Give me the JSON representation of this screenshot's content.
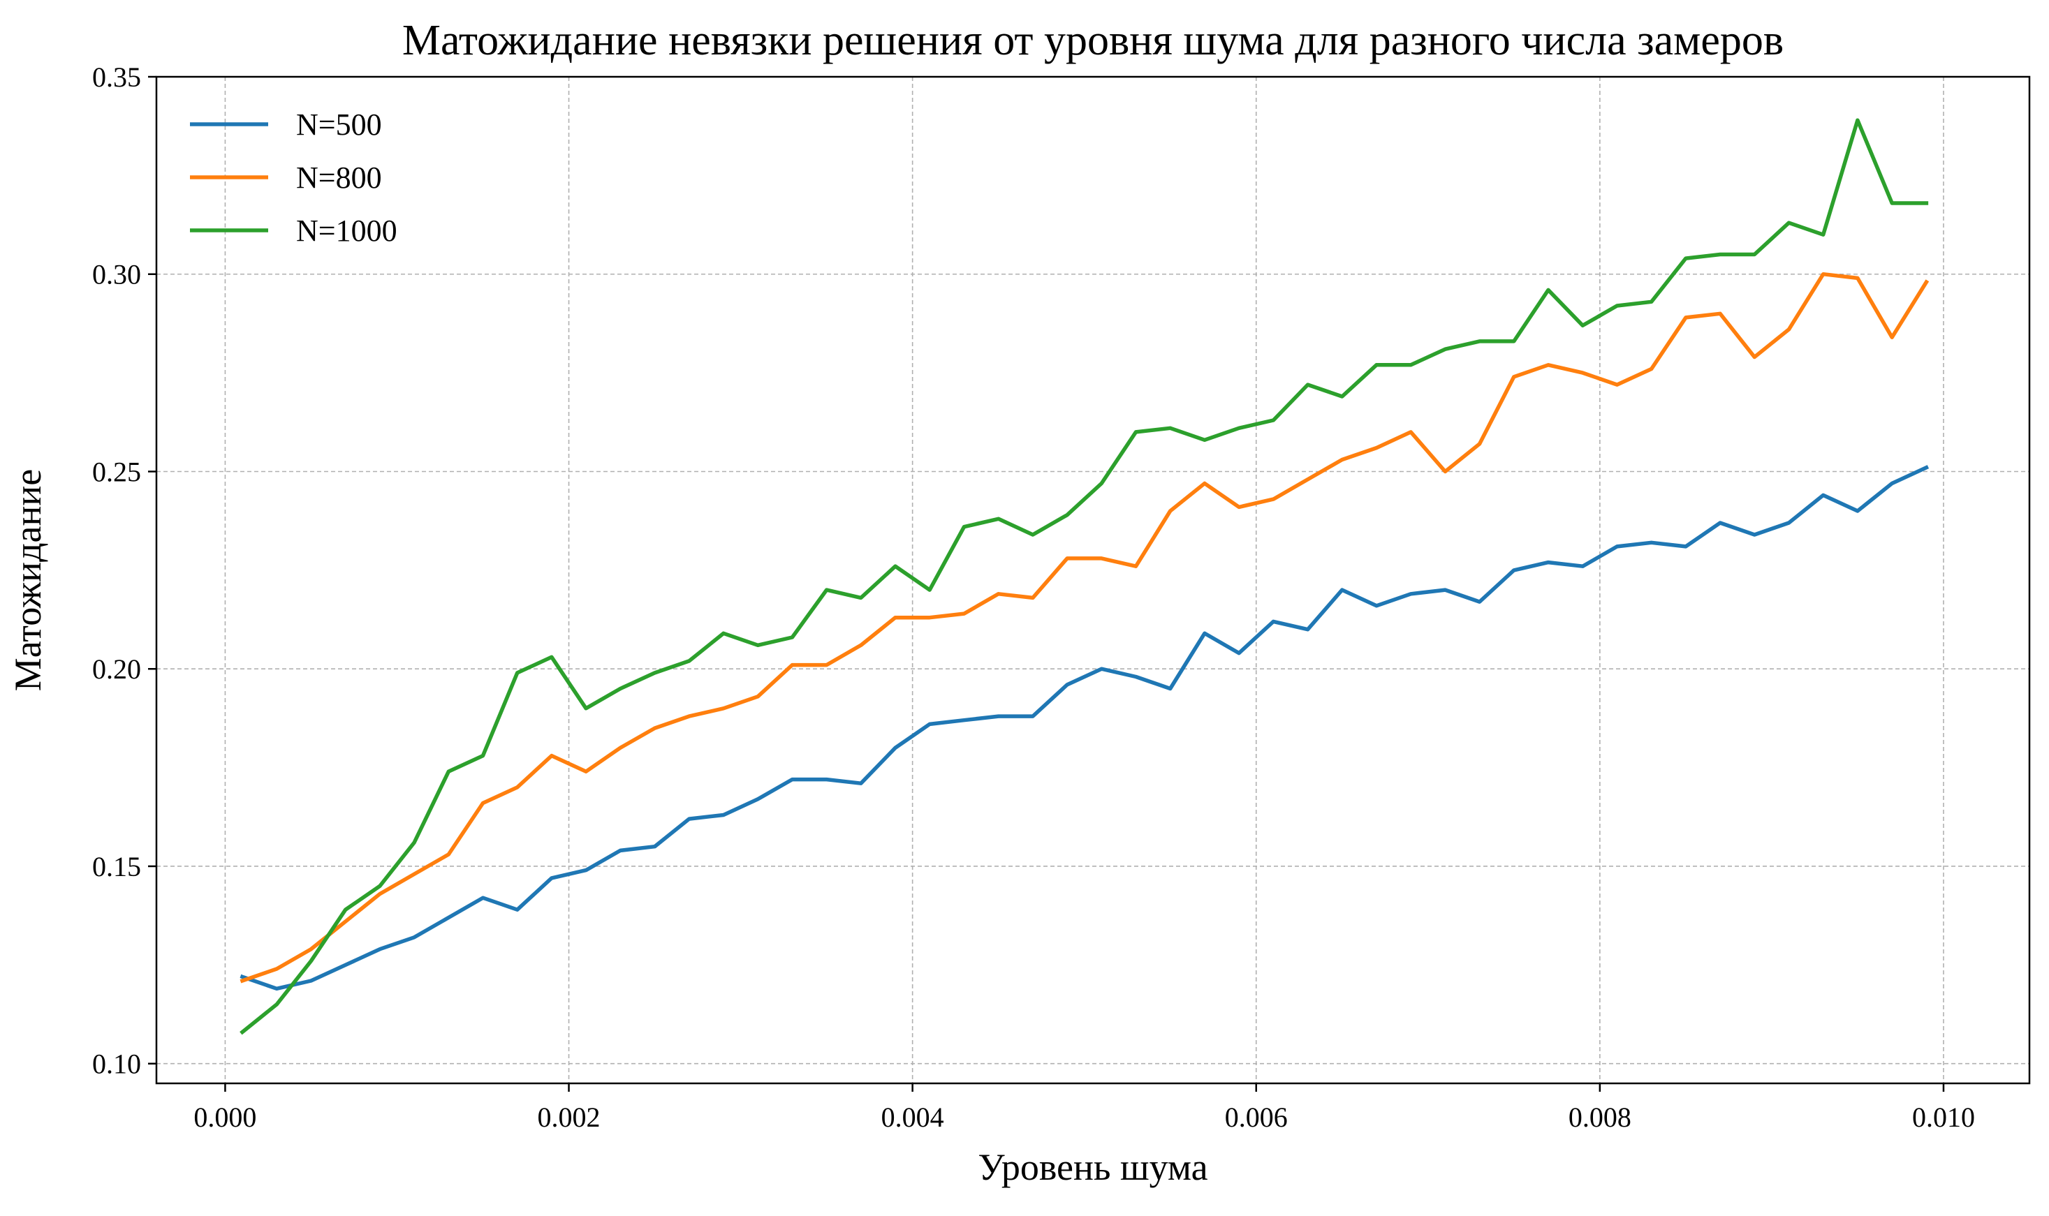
{
  "chart_data": {
    "type": "line",
    "title": "Матожидание невязки решения от уровня шума для разного числа замеров",
    "xlabel": "Уровень шума",
    "ylabel": "Матожидание",
    "xlim": [
      -0.0004,
      0.0105
    ],
    "ylim": [
      0.095,
      0.35
    ],
    "xticks": [
      "0.000",
      "0.002",
      "0.004",
      "0.006",
      "0.008",
      "0.010"
    ],
    "yticks": [
      "0.10",
      "0.15",
      "0.20",
      "0.25",
      "0.30",
      "0.35"
    ],
    "grid": true,
    "legend_position": "top-left",
    "x": [
      0.0001,
      0.0003,
      0.0005,
      0.0007,
      0.0009,
      0.0011,
      0.0013,
      0.0015,
      0.0017,
      0.0019,
      0.0021,
      0.0023,
      0.0025,
      0.0027,
      0.0029,
      0.0031,
      0.0033,
      0.0035,
      0.0037,
      0.0039,
      0.0041,
      0.0043,
      0.0045,
      0.0047,
      0.0049,
      0.0051,
      0.0053,
      0.0055,
      0.0057,
      0.0059,
      0.0061,
      0.0063,
      0.0065,
      0.0067,
      0.0069,
      0.0071,
      0.0073,
      0.0075,
      0.0077,
      0.0079,
      0.0081,
      0.0083,
      0.0085,
      0.0087,
      0.0089,
      0.0091,
      0.0093,
      0.0095,
      0.0097,
      0.0099
    ],
    "series": [
      {
        "name": "N=500",
        "color": "#1f77b4",
        "values": [
          0.122,
          0.119,
          0.121,
          0.125,
          0.129,
          0.132,
          0.137,
          0.142,
          0.139,
          0.147,
          0.149,
          0.154,
          0.155,
          0.162,
          0.163,
          0.167,
          0.172,
          0.172,
          0.171,
          0.18,
          0.186,
          0.187,
          0.188,
          0.188,
          0.196,
          0.2,
          0.198,
          0.195,
          0.209,
          0.204,
          0.212,
          0.21,
          0.22,
          0.216,
          0.219,
          0.22,
          0.217,
          0.225,
          0.227,
          0.226,
          0.231,
          0.232,
          0.231,
          0.237,
          0.234,
          0.237,
          0.244,
          0.24,
          0.247,
          0.251
        ]
      },
      {
        "name": "N=800",
        "color": "#ff7f0e",
        "values": [
          0.121,
          0.124,
          0.129,
          0.136,
          0.143,
          0.148,
          0.153,
          0.166,
          0.17,
          0.178,
          0.174,
          0.18,
          0.185,
          0.188,
          0.19,
          0.193,
          0.201,
          0.201,
          0.206,
          0.213,
          0.213,
          0.214,
          0.219,
          0.218,
          0.228,
          0.228,
          0.226,
          0.24,
          0.247,
          0.241,
          0.243,
          0.248,
          0.253,
          0.256,
          0.26,
          0.25,
          0.257,
          0.274,
          0.277,
          0.275,
          0.272,
          0.276,
          0.289,
          0.29,
          0.279,
          0.286,
          0.3,
          0.299,
          0.284,
          0.298
        ]
      },
      {
        "name": "N=1000",
        "color": "#2ca02c",
        "values": [
          0.108,
          0.115,
          0.126,
          0.139,
          0.145,
          0.156,
          0.174,
          0.178,
          0.199,
          0.203,
          0.19,
          0.195,
          0.199,
          0.202,
          0.209,
          0.206,
          0.208,
          0.22,
          0.218,
          0.226,
          0.22,
          0.236,
          0.238,
          0.234,
          0.239,
          0.247,
          0.26,
          0.261,
          0.258,
          0.261,
          0.263,
          0.272,
          0.269,
          0.277,
          0.277,
          0.281,
          0.283,
          0.283,
          0.296,
          0.287,
          0.292,
          0.293,
          0.304,
          0.305,
          0.305,
          0.313,
          0.31,
          0.339,
          0.318,
          0.318
        ]
      }
    ]
  }
}
